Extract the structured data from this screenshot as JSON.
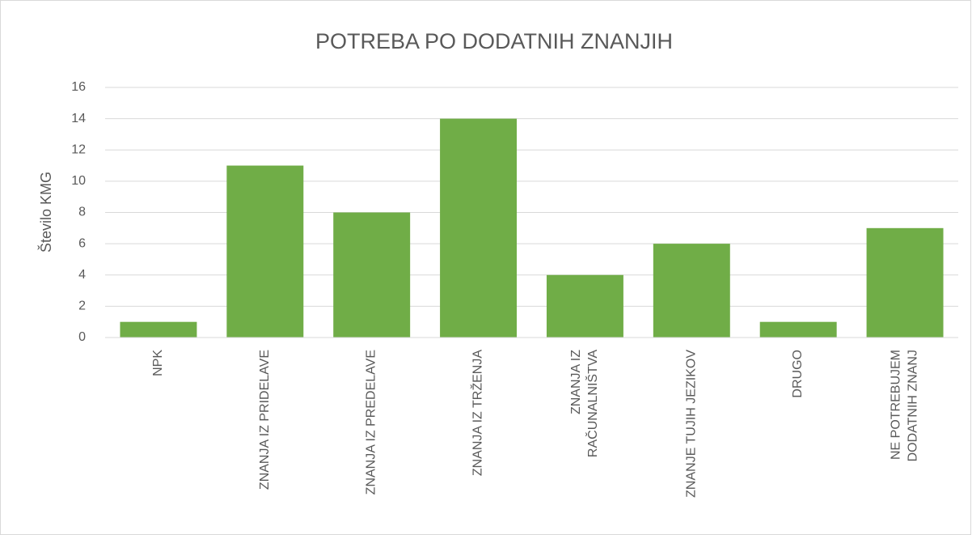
{
  "chart_data": {
    "type": "bar",
    "title": "POTREBA PO DODATNIH ZNANJIH",
    "y_label": "Število KMG",
    "categories": [
      "NPK",
      "ZNANJA IZ PRIDELAVE",
      "ZNANJA IZ PREDELAVE",
      "ZNANJA IZ TRŽENJA",
      "ZNANJA IZ RAČUNALNIŠTVA",
      "ZNANJE TUJIH JEZIKOV",
      "DRUGO",
      "NE POTREBUJEM DODATNIH ZNANJ"
    ],
    "values": [
      1,
      11,
      8,
      14,
      4,
      6,
      1,
      7
    ],
    "color": "#70ad47",
    "ylim": [
      0,
      16
    ],
    "yticks": [
      0,
      2,
      4,
      6,
      8,
      10,
      12,
      14,
      16
    ],
    "grid": true
  }
}
